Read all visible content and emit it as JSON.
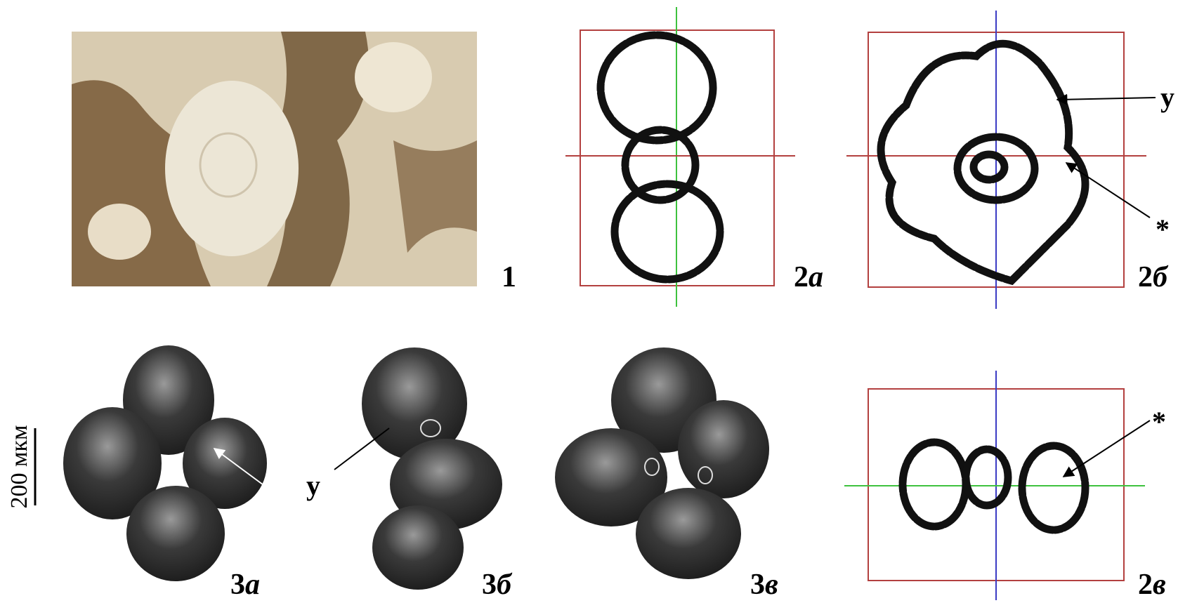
{
  "figure": {
    "panels": [
      {
        "number": "1"
      },
      {
        "number": "2",
        "letter": "а"
      },
      {
        "number": "2",
        "letter": "б"
      },
      {
        "number": "2",
        "letter": "в"
      },
      {
        "number": "3",
        "letter": "а"
      },
      {
        "number": "3",
        "letter": "б"
      },
      {
        "number": "3",
        "letter": "в"
      }
    ],
    "annotations": [
      "у",
      "*",
      "*",
      "у"
    ],
    "scale_bar": "200 мкм"
  }
}
